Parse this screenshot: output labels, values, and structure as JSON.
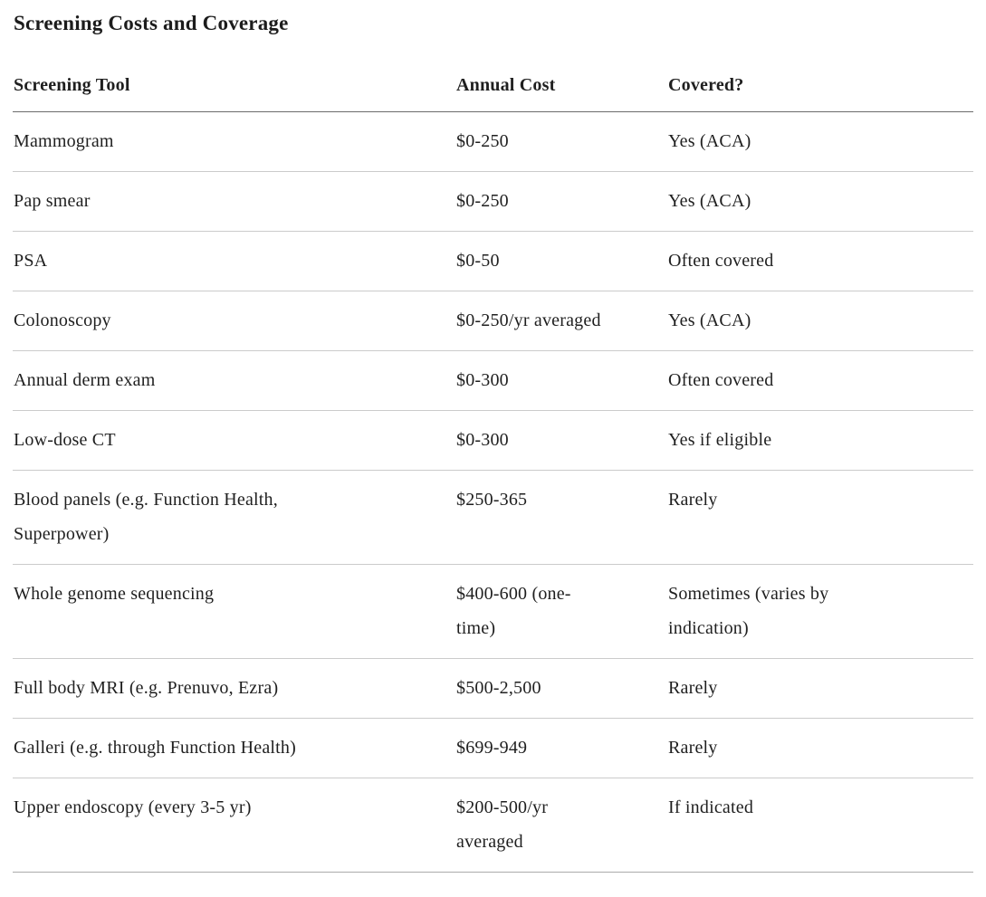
{
  "page": {
    "title": "Screening Costs and Coverage"
  },
  "table": {
    "columns": [
      "Screening Tool",
      "Annual Cost",
      "Covered?"
    ],
    "rows": [
      {
        "tool": "Mammogram",
        "cost": "$0-250",
        "covered": "Yes (ACA)"
      },
      {
        "tool": "Pap smear",
        "cost": "$0-250",
        "covered": "Yes (ACA)"
      },
      {
        "tool": "PSA",
        "cost": "$0-50",
        "covered": "Often covered"
      },
      {
        "tool": "Colonoscopy",
        "cost": "$0-250/yr averaged",
        "covered": "Yes (ACA)"
      },
      {
        "tool": "Annual derm exam",
        "cost": "$0-300",
        "covered": "Often covered"
      },
      {
        "tool": "Low-dose CT",
        "cost": "$0-300",
        "covered": "Yes if eligible"
      },
      {
        "tool": "Blood panels (e.g. Function Health,\nSuperpower)",
        "cost": "$250-365",
        "covered": "Rarely"
      },
      {
        "tool": "Whole genome sequencing",
        "cost": "$400-600 (one-\ntime)",
        "covered": "Sometimes (varies by\nindication)"
      },
      {
        "tool": "Full body MRI (e.g. Prenuvo, Ezra)",
        "cost": "$500-2,500",
        "covered": "Rarely"
      },
      {
        "tool": "Galleri (e.g. through Function Health)",
        "cost": "$699-949",
        "covered": "Rarely"
      },
      {
        "tool": "Upper endoscopy (every 3-5 yr)",
        "cost": "$200-500/yr\naveraged",
        "covered": "If indicated"
      }
    ]
  },
  "colors": {
    "text": "#1f1f1f",
    "header_rule": "#6b6b6b",
    "row_rule": "#cbcbcb",
    "bottom_rule": "#ababab",
    "background": "#ffffff"
  }
}
